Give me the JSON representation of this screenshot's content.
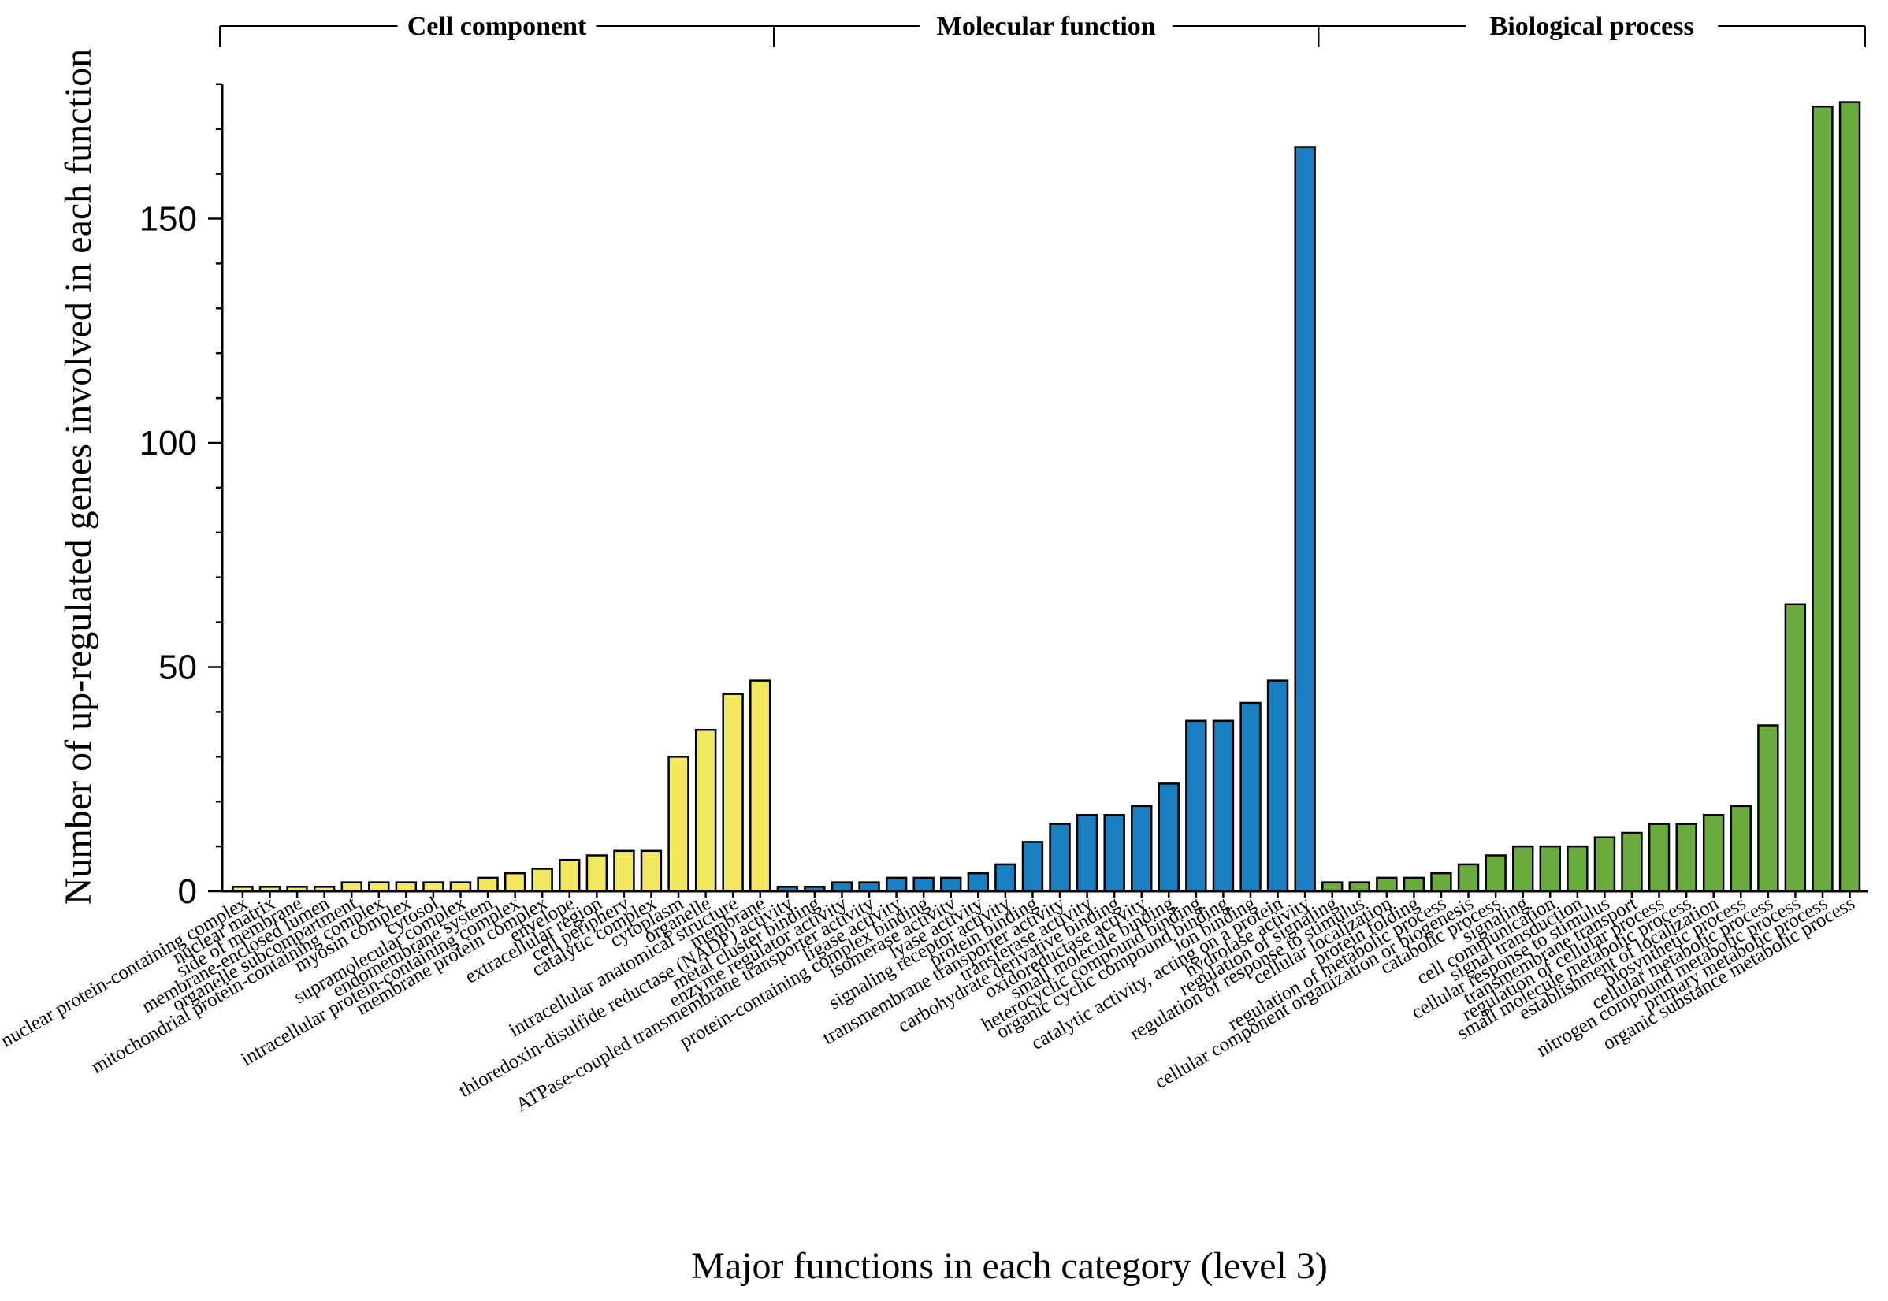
{
  "chart_data": {
    "type": "bar",
    "title": "",
    "xlabel": "Major functions in each category (level 3)",
    "ylabel": "Number of up-regulated genes involved in each function",
    "ylim": [
      0,
      180
    ],
    "yticks": [
      0,
      50,
      100,
      150
    ],
    "ytick_labels": [
      "0",
      "50",
      "100",
      "150"
    ],
    "minor_tick_step": 10,
    "groups": [
      {
        "name": "Cell component",
        "color": "#f2e860",
        "categories": [
          "nuclear protein-containing complex",
          "nuclear matrix",
          "side of membrane",
          "membrane-enclosed lumen",
          "organelle subcompartment",
          "mitochondrial protein-containing complex",
          "myosin complex",
          "cytosol",
          "supramolecular complex",
          "endomembrane system",
          "intracellular protein-containing complex",
          "membrane protein complex",
          "envelope",
          "extracellular region",
          "cell periphery",
          "catalytic complex",
          "cytoplasm",
          "organelle",
          "intracellular anatomical structure",
          "membrane"
        ],
        "values": [
          1,
          1,
          1,
          1,
          2,
          2,
          2,
          2,
          2,
          3,
          4,
          5,
          7,
          8,
          9,
          9,
          30,
          36,
          44,
          47
        ]
      },
      {
        "name": "Molecular function",
        "color": "#1a7fc1",
        "categories": [
          "thioredoxin-disulfide reductase (NADP) activity",
          "metal cluster binding",
          "enzyme regulator activity",
          "ATPase-coupled transmembrane transporter activity",
          "ligase activity",
          "protein-containing complex binding",
          "isomerase activity",
          "lyase activity",
          "signaling receptor activity",
          "protein binding",
          "transmembrane transporter activity",
          "transferase activity",
          "carbohydrate derivative binding",
          "oxidoreductase activity",
          "small molecule binding",
          "heterocyclic compound binding",
          "organic cyclic compound binding",
          "ion binding",
          "catalytic activity, acting on a protein",
          "hydrolase activity"
        ],
        "values": [
          1,
          1,
          2,
          2,
          3,
          3,
          3,
          4,
          6,
          11,
          15,
          17,
          17,
          19,
          24,
          38,
          38,
          42,
          47,
          166
        ]
      },
      {
        "name": "Biological process",
        "color": "#6aab3e",
        "categories": [
          "regulation of signaling",
          "regulation of response to stimulus",
          "cellular localization",
          "protein folding",
          "regulation of metabolic process",
          "cellular component organization or biogenesis",
          "catabolic process",
          "signaling",
          "cell communication",
          "signal transduction",
          "cellular response to stimulus",
          "transmembrane transport",
          "regulation of cellular process",
          "small molecule metabolic process",
          "establishment of localization",
          "biosynthetic process",
          "cellular metabolic process",
          "nitrogen compound metabolic process",
          "primary metabolic process",
          "organic substance metabolic process"
        ],
        "values": [
          2,
          2,
          3,
          3,
          4,
          6,
          8,
          10,
          10,
          10,
          12,
          13,
          15,
          15,
          17,
          19,
          37,
          64,
          175,
          176
        ]
      }
    ]
  }
}
